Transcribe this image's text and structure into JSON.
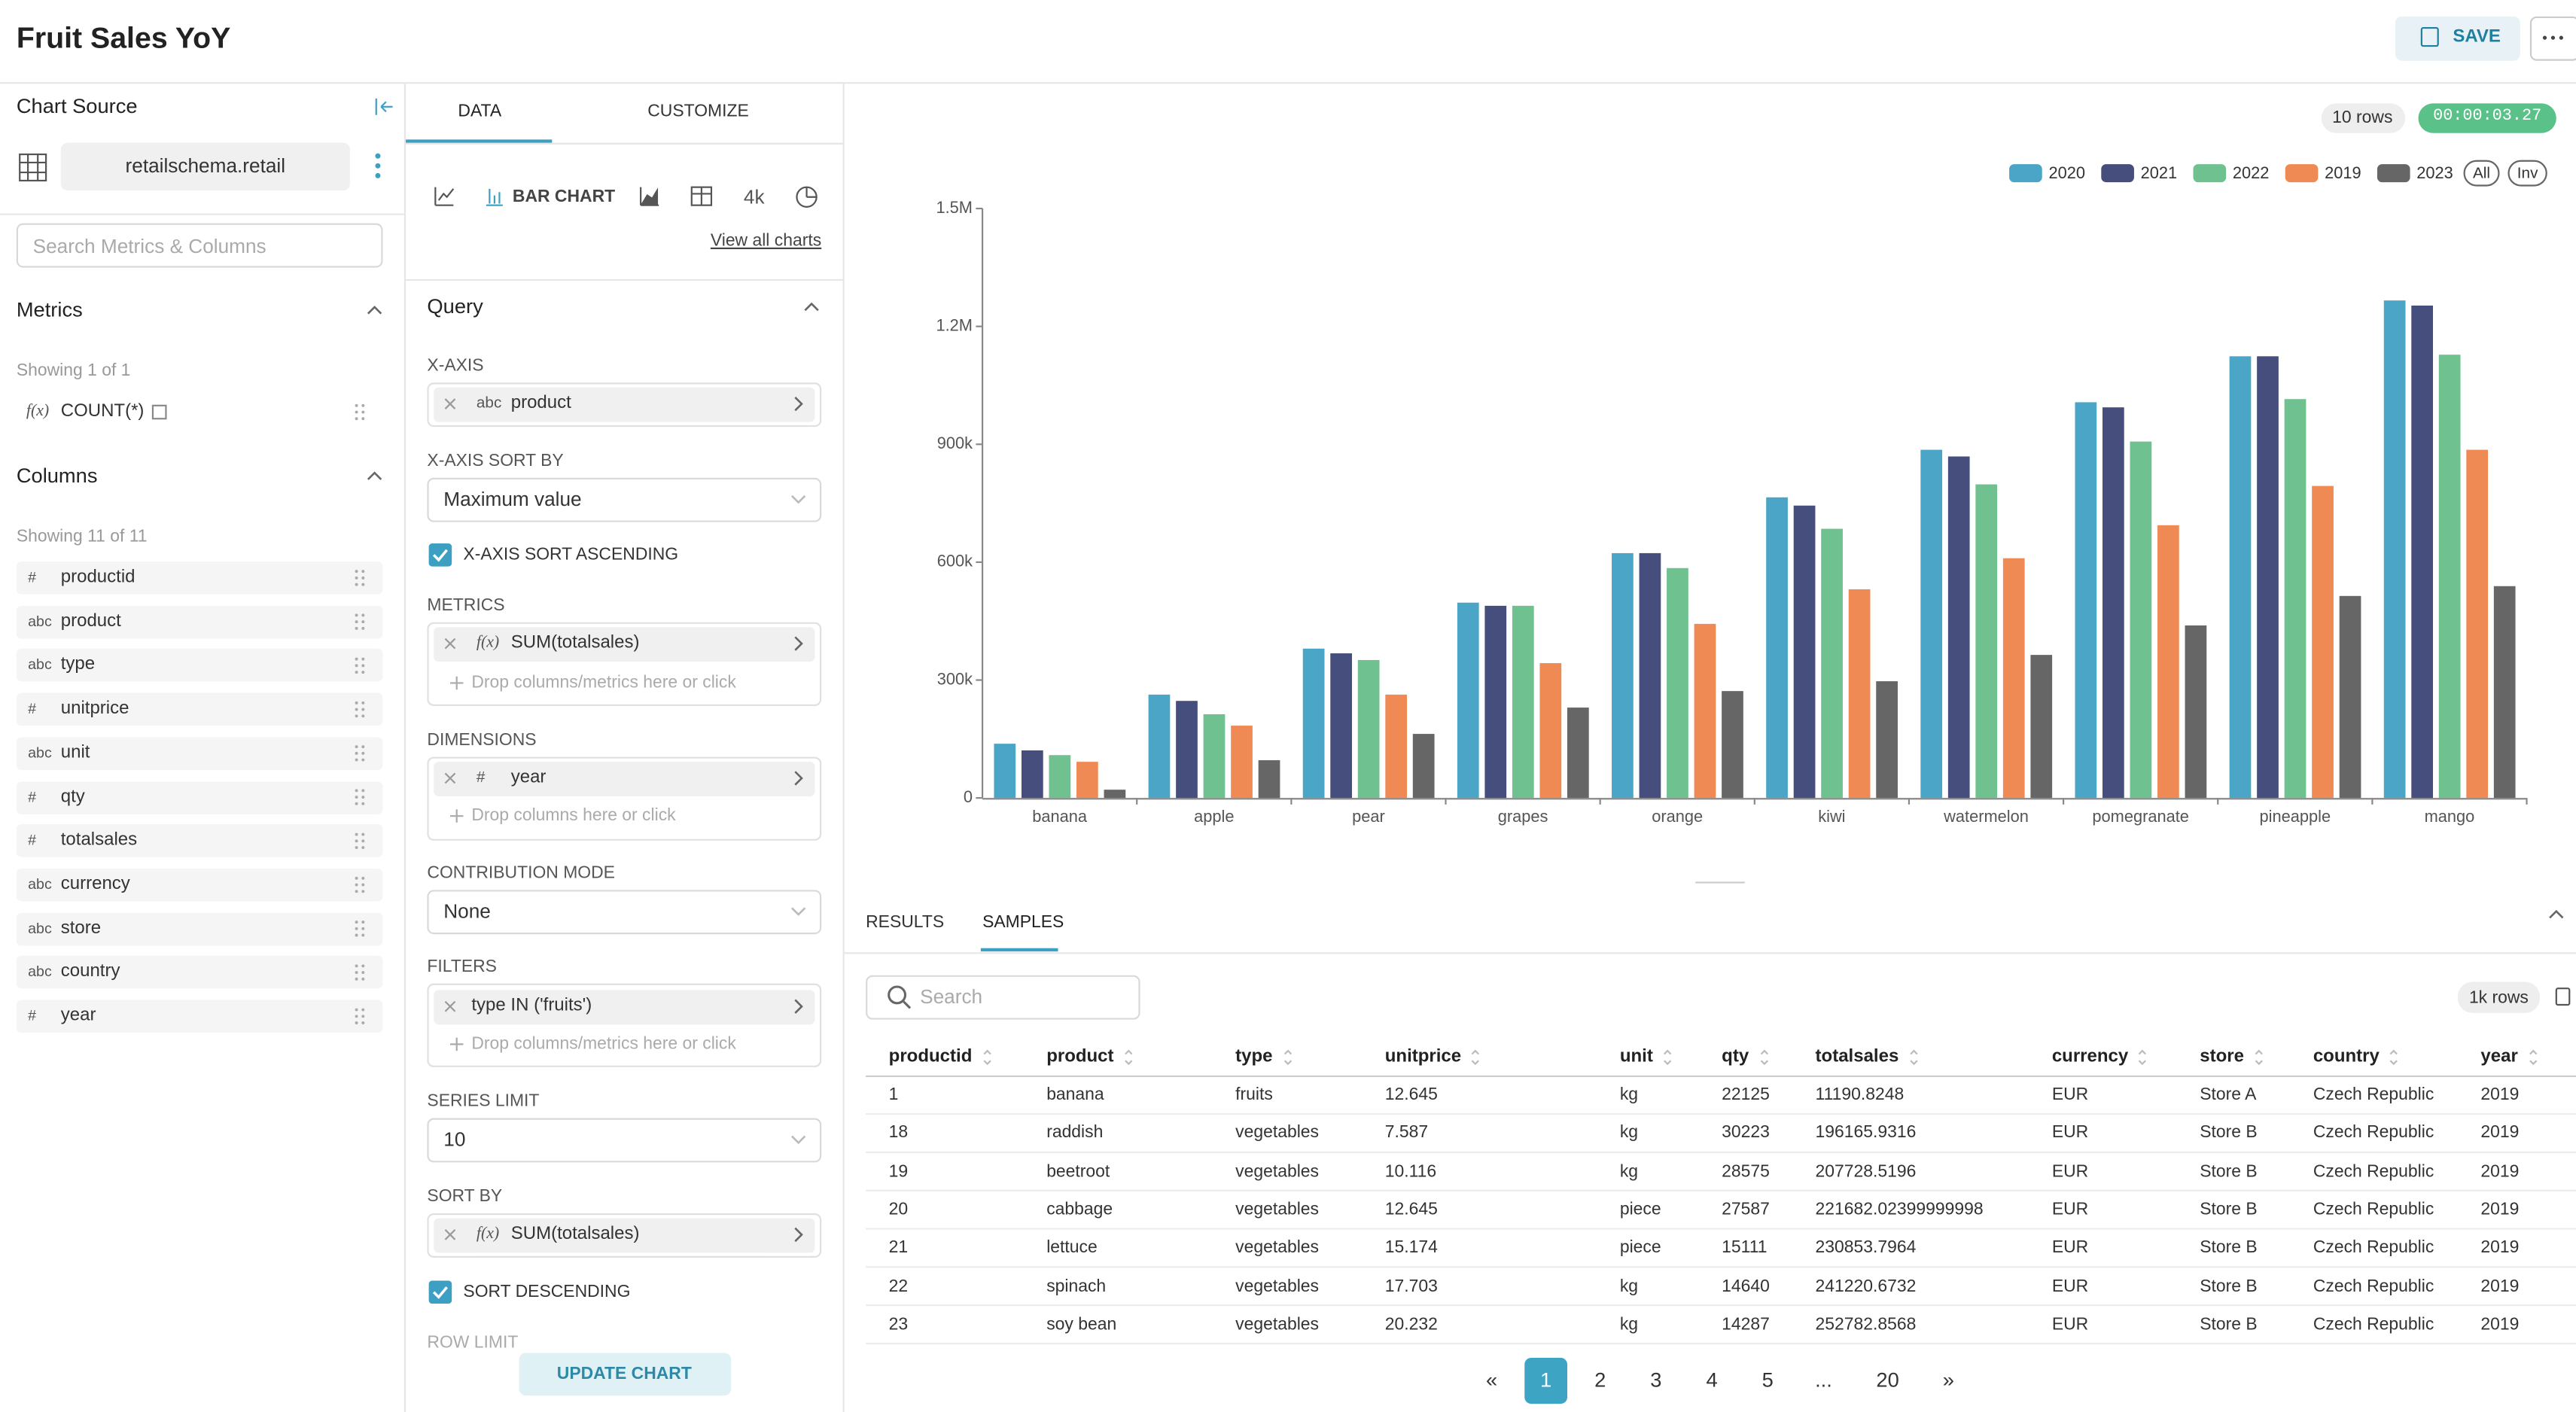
{
  "header": {
    "title": "Fruit Sales YoY",
    "save": "SAVE"
  },
  "source_panel": {
    "title": "Chart Source",
    "dataset": "retailschema.retail",
    "search_placeholder": "Search Metrics & Columns",
    "metrics_title": "Metrics",
    "metrics_count": "Showing 1 of 1",
    "metrics": [
      {
        "icon": "f(x)",
        "name": "COUNT(*)"
      }
    ],
    "columns_title": "Columns",
    "columns_count": "Showing 11 of 11",
    "columns": [
      {
        "icon": "#",
        "name": "productid"
      },
      {
        "icon": "abc",
        "name": "product"
      },
      {
        "icon": "abc",
        "name": "type"
      },
      {
        "icon": "#",
        "name": "unitprice"
      },
      {
        "icon": "abc",
        "name": "unit"
      },
      {
        "icon": "#",
        "name": "qty"
      },
      {
        "icon": "#",
        "name": "totalsales"
      },
      {
        "icon": "abc",
        "name": "currency"
      },
      {
        "icon": "abc",
        "name": "store"
      },
      {
        "icon": "abc",
        "name": "country"
      },
      {
        "icon": "#",
        "name": "year"
      }
    ]
  },
  "control_panel": {
    "tabs": [
      "DATA",
      "CUSTOMIZE"
    ],
    "chart_type": "BAR CHART",
    "big_number_icon": "4k",
    "view_all": "View all charts",
    "query_title": "Query",
    "x_axis": {
      "label": "X-AXIS",
      "icon": "abc",
      "value": "product"
    },
    "x_axis_sort_by": {
      "label": "X-AXIS SORT BY",
      "value": "Maximum value"
    },
    "x_axis_sort_ascending": "X-AXIS SORT ASCENDING",
    "metrics": {
      "label": "METRICS",
      "icon": "f(x)",
      "value": "SUM(totalsales)",
      "drop": "Drop columns/metrics here or click"
    },
    "dimensions": {
      "label": "DIMENSIONS",
      "icon": "#",
      "value": "year",
      "drop": "Drop columns here or click"
    },
    "contribution_mode": {
      "label": "CONTRIBUTION MODE",
      "value": "None"
    },
    "filters": {
      "label": "FILTERS",
      "value": "type IN ('fruits')",
      "drop": "Drop columns/metrics here or click"
    },
    "series_limit": {
      "label": "SERIES LIMIT",
      "value": "10"
    },
    "sort_by": {
      "label": "SORT BY",
      "icon": "f(x)",
      "value": "SUM(totalsales)"
    },
    "sort_descending": "SORT DESCENDING",
    "row_limit": "ROW LIMIT",
    "update": "UPDATE CHART"
  },
  "chart_meta": {
    "row_count": "10 rows",
    "timer": "00:00:03.27",
    "legend_all": "All",
    "legend_inv": "Inv"
  },
  "chart_data": {
    "type": "bar",
    "categories": [
      "banana",
      "apple",
      "pear",
      "grapes",
      "orange",
      "kiwi",
      "watermelon",
      "pomegranate",
      "pineapple",
      "mango"
    ],
    "series": [
      {
        "name": "2020",
        "color": "#4ba5c6",
        "values": [
          138000,
          263000,
          380000,
          497000,
          623000,
          765000,
          886000,
          1007000,
          1124000,
          1266000
        ]
      },
      {
        "name": "2021",
        "color": "#454e7c",
        "values": [
          121000,
          247000,
          368000,
          489000,
          623000,
          744000,
          869000,
          994000,
          1124000,
          1253000
        ]
      },
      {
        "name": "2022",
        "color": "#6fc18f",
        "values": [
          109000,
          213000,
          351000,
          489000,
          585000,
          685000,
          798000,
          907000,
          1015000,
          1128000
        ]
      },
      {
        "name": "2019",
        "color": "#f08a55",
        "values": [
          92000,
          184000,
          263000,
          343000,
          443000,
          531000,
          610000,
          694000,
          794000,
          886000
        ]
      },
      {
        "name": "2023",
        "color": "#666666",
        "values": [
          21000,
          96000,
          163000,
          230000,
          272000,
          297000,
          364000,
          439000,
          514000,
          539000
        ]
      }
    ],
    "ylim": [
      0,
      1500000
    ],
    "yticks": [
      0,
      {
        "value": 300000,
        "label": "300k"
      },
      {
        "value": 600000,
        "label": "600k"
      },
      {
        "value": 900000,
        "label": "900k"
      },
      {
        "value": 1200000,
        "label": "1.2M"
      },
      {
        "value": 1500000,
        "label": "1.5M"
      }
    ],
    "grid": false,
    "legend": "top-right"
  },
  "results": {
    "tabs": [
      "RESULTS",
      "SAMPLES"
    ],
    "search_placeholder": "Search",
    "row_count": "1k rows",
    "table": {
      "columns": [
        "productid",
        "product",
        "type",
        "unitprice",
        "unit",
        "qty",
        "totalsales",
        "currency",
        "store",
        "country",
        "year"
      ],
      "rows": [
        [
          1,
          "banana",
          "fruits",
          12.645,
          "kg",
          22125,
          11190.8248,
          "EUR",
          "Store A",
          "Czech Republic",
          2019
        ],
        [
          18,
          "raddish",
          "vegetables",
          7.587,
          "kg",
          30223,
          196165.9316,
          "EUR",
          "Store B",
          "Czech Republic",
          2019
        ],
        [
          19,
          "beetroot",
          "vegetables",
          10.116,
          "kg",
          28575,
          207728.5196,
          "EUR",
          "Store B",
          "Czech Republic",
          2019
        ],
        [
          20,
          "cabbage",
          "vegetables",
          12.645,
          "piece",
          27587,
          221682.02399999998,
          "EUR",
          "Store B",
          "Czech Republic",
          2019
        ],
        [
          21,
          "lettuce",
          "vegetables",
          15.174,
          "piece",
          15111,
          230853.7964,
          "EUR",
          "Store B",
          "Czech Republic",
          2019
        ],
        [
          22,
          "spinach",
          "vegetables",
          17.703,
          "kg",
          14640,
          241220.6732,
          "EUR",
          "Store B",
          "Czech Republic",
          2019
        ],
        [
          23,
          "soy bean",
          "vegetables",
          20.232,
          "kg",
          14287,
          252782.8568,
          "EUR",
          "Store B",
          "Czech Republic",
          2019
        ]
      ]
    }
  },
  "pagination": [
    "«",
    "1",
    "2",
    "3",
    "4",
    "5",
    "...",
    "20",
    "»"
  ]
}
